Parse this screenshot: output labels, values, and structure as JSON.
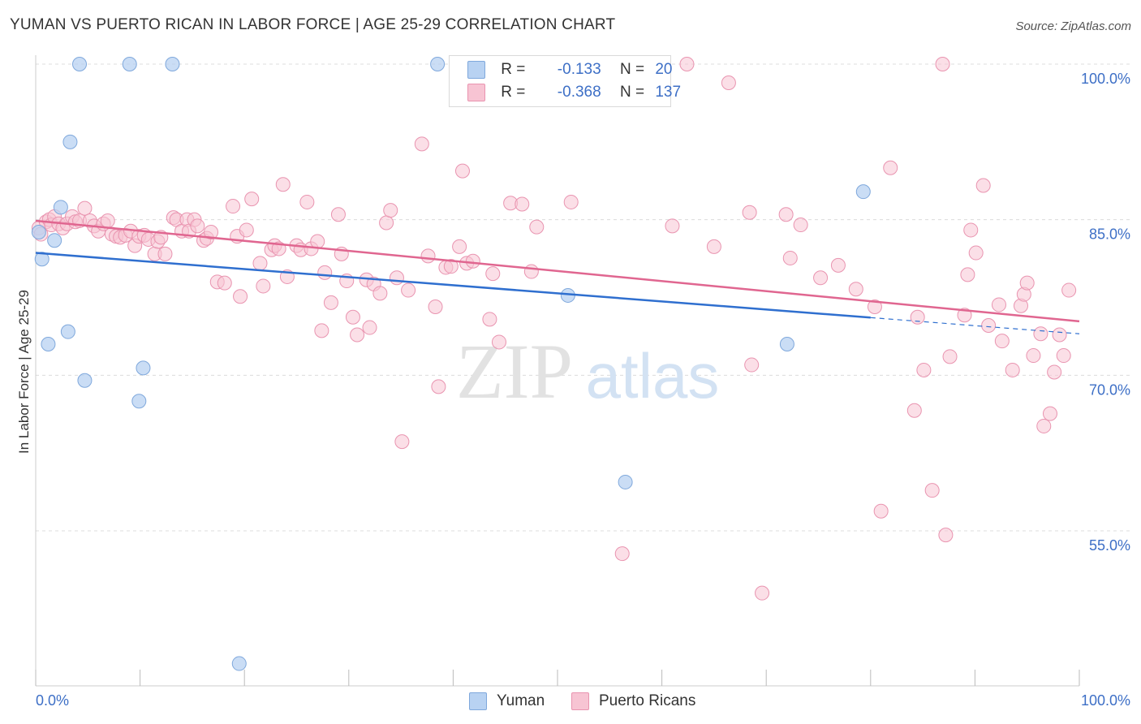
{
  "title": "YUMAN VS PUERTO RICAN IN LABOR FORCE | AGE 25-29 CORRELATION CHART",
  "source": "Source: ZipAtlas.com",
  "watermark": {
    "zip": "ZIP",
    "atlas": "atlas"
  },
  "legend": {
    "r_label": "R =",
    "n_label": "N =",
    "yuman": {
      "r": "-0.133",
      "n": "20"
    },
    "puerto": {
      "r": "-0.368",
      "n": "137"
    }
  },
  "bottom_legend": {
    "yuman": "Yuman",
    "puerto": "Puerto Ricans"
  },
  "colors": {
    "yuman_fill": "#b8d2f2",
    "yuman_stroke": "#7fa8dc",
    "yuman_line": "#2f6fcf",
    "puerto_fill": "#f7c4d3",
    "puerto_stroke": "#e994b0",
    "puerto_line": "#e06690",
    "axis_text": "#3d6fc6",
    "grid": "#dcdcdc"
  },
  "chart_data": {
    "type": "scatter",
    "title": "YUMAN VS PUERTO RICAN IN LABOR FORCE | AGE 25-29 CORRELATION CHART",
    "xlabel": "",
    "ylabel": "In Labor Force | Age 25-29",
    "xlim": [
      0,
      100
    ],
    "ylim": [
      40,
      101.5
    ],
    "x_tick_labels": [
      "0.0%",
      "100.0%"
    ],
    "y_ticks": [
      55,
      70,
      85,
      100
    ],
    "y_tick_labels": [
      "55.0%",
      "70.0%",
      "85.0%",
      "100.0%"
    ],
    "grid": true,
    "legend_position": "top-center",
    "series": [
      {
        "name": "Yuman",
        "r": -0.133,
        "n": 20,
        "trend": {
          "x0": 0,
          "y0": 81.8,
          "x1": 100,
          "y1": 74.0,
          "solid_until": 80
        },
        "points": [
          [
            0.3,
            83.8
          ],
          [
            0.6,
            81.2
          ],
          [
            1.2,
            73.0
          ],
          [
            1.8,
            83.0
          ],
          [
            2.4,
            86.2
          ],
          [
            3.1,
            74.2
          ],
          [
            3.3,
            92.5
          ],
          [
            4.2,
            100.0
          ],
          [
            4.7,
            69.5
          ],
          [
            9.0,
            100.0
          ],
          [
            9.9,
            67.5
          ],
          [
            10.3,
            70.7
          ],
          [
            13.1,
            100.0
          ],
          [
            19.5,
            42.2
          ],
          [
            38.5,
            100.0
          ],
          [
            51.2,
            100.0
          ],
          [
            51.0,
            77.7
          ],
          [
            56.5,
            59.7
          ],
          [
            72.0,
            73.0
          ],
          [
            79.3,
            87.7
          ]
        ]
      },
      {
        "name": "Puerto Ricans",
        "r": -0.368,
        "n": 137,
        "trend": {
          "x0": 0,
          "y0": 84.9,
          "x1": 100,
          "y1": 75.2
        },
        "points": [
          [
            0.3,
            84.2
          ],
          [
            0.5,
            83.6
          ],
          [
            1.0,
            84.8
          ],
          [
            1.3,
            85.0
          ],
          [
            1.5,
            84.5
          ],
          [
            1.8,
            85.3
          ],
          [
            2.2,
            84.6
          ],
          [
            2.6,
            84.2
          ],
          [
            3.0,
            84.6
          ],
          [
            3.5,
            85.3
          ],
          [
            3.8,
            84.8
          ],
          [
            4.2,
            84.9
          ],
          [
            4.7,
            86.1
          ],
          [
            5.2,
            84.9
          ],
          [
            5.6,
            84.4
          ],
          [
            6.0,
            83.9
          ],
          [
            6.5,
            84.6
          ],
          [
            6.9,
            84.9
          ],
          [
            7.3,
            83.6
          ],
          [
            7.7,
            83.4
          ],
          [
            8.1,
            83.3
          ],
          [
            8.6,
            83.5
          ],
          [
            9.1,
            83.9
          ],
          [
            9.5,
            82.5
          ],
          [
            9.9,
            83.4
          ],
          [
            10.4,
            83.5
          ],
          [
            10.8,
            83.1
          ],
          [
            11.4,
            81.7
          ],
          [
            11.7,
            82.9
          ],
          [
            12.0,
            83.3
          ],
          [
            12.4,
            81.7
          ],
          [
            13.2,
            85.2
          ],
          [
            13.5,
            85.0
          ],
          [
            14.0,
            83.9
          ],
          [
            14.5,
            85.0
          ],
          [
            14.7,
            83.9
          ],
          [
            15.2,
            85.0
          ],
          [
            15.5,
            84.4
          ],
          [
            16.1,
            83.0
          ],
          [
            16.4,
            83.2
          ],
          [
            16.8,
            83.8
          ],
          [
            17.4,
            79.0
          ],
          [
            18.1,
            78.9
          ],
          [
            18.9,
            86.3
          ],
          [
            19.3,
            83.4
          ],
          [
            19.6,
            77.6
          ],
          [
            20.2,
            84.0
          ],
          [
            20.7,
            87.0
          ],
          [
            21.5,
            80.8
          ],
          [
            21.8,
            78.6
          ],
          [
            22.6,
            82.1
          ],
          [
            22.9,
            82.5
          ],
          [
            23.3,
            82.2
          ],
          [
            23.7,
            88.4
          ],
          [
            24.1,
            79.5
          ],
          [
            25.0,
            82.5
          ],
          [
            25.4,
            82.1
          ],
          [
            26.0,
            86.7
          ],
          [
            26.4,
            82.2
          ],
          [
            27.0,
            82.9
          ],
          [
            27.4,
            74.3
          ],
          [
            27.7,
            79.9
          ],
          [
            28.3,
            77.0
          ],
          [
            29.0,
            85.5
          ],
          [
            29.3,
            81.7
          ],
          [
            29.8,
            79.1
          ],
          [
            30.4,
            75.6
          ],
          [
            30.8,
            73.9
          ],
          [
            31.7,
            79.2
          ],
          [
            32.0,
            74.6
          ],
          [
            32.4,
            78.8
          ],
          [
            33.0,
            77.9
          ],
          [
            33.6,
            84.7
          ],
          [
            34.0,
            85.9
          ],
          [
            34.6,
            79.4
          ],
          [
            35.1,
            63.6
          ],
          [
            35.7,
            78.2
          ],
          [
            37.0,
            92.3
          ],
          [
            37.6,
            81.5
          ],
          [
            38.3,
            76.6
          ],
          [
            38.6,
            68.9
          ],
          [
            39.3,
            80.4
          ],
          [
            39.8,
            80.5
          ],
          [
            40.6,
            82.4
          ],
          [
            40.9,
            89.7
          ],
          [
            41.3,
            80.8
          ],
          [
            41.9,
            81.0
          ],
          [
            43.5,
            75.4
          ],
          [
            43.8,
            79.8
          ],
          [
            44.4,
            73.2
          ],
          [
            45.5,
            86.6
          ],
          [
            46.6,
            86.5
          ],
          [
            47.5,
            80.0
          ],
          [
            48.0,
            84.3
          ],
          [
            50.0,
            100.0
          ],
          [
            51.9,
            100.0
          ],
          [
            51.3,
            86.7
          ],
          [
            55.2,
            100.0
          ],
          [
            56.2,
            52.8
          ],
          [
            61.0,
            84.4
          ],
          [
            62.4,
            100.0
          ],
          [
            65.0,
            82.4
          ],
          [
            66.4,
            98.2
          ],
          [
            68.4,
            85.7
          ],
          [
            68.6,
            71.0
          ],
          [
            69.6,
            49.0
          ],
          [
            71.9,
            85.5
          ],
          [
            72.3,
            81.3
          ],
          [
            73.3,
            84.5
          ],
          [
            75.2,
            79.4
          ],
          [
            76.9,
            80.6
          ],
          [
            78.6,
            78.3
          ],
          [
            80.4,
            76.6
          ],
          [
            81.0,
            56.9
          ],
          [
            81.9,
            90.0
          ],
          [
            84.2,
            66.6
          ],
          [
            84.5,
            75.6
          ],
          [
            85.1,
            70.5
          ],
          [
            85.9,
            58.9
          ],
          [
            86.9,
            100.0
          ],
          [
            87.2,
            54.6
          ],
          [
            87.6,
            71.8
          ],
          [
            89.0,
            75.8
          ],
          [
            89.3,
            79.7
          ],
          [
            89.6,
            84.0
          ],
          [
            90.1,
            81.8
          ],
          [
            90.8,
            88.3
          ],
          [
            91.3,
            74.8
          ],
          [
            92.3,
            76.8
          ],
          [
            92.6,
            73.3
          ],
          [
            93.6,
            70.5
          ],
          [
            94.4,
            76.7
          ],
          [
            94.7,
            77.8
          ],
          [
            95.0,
            78.9
          ],
          [
            95.6,
            71.9
          ],
          [
            96.3,
            74.0
          ],
          [
            96.6,
            65.1
          ],
          [
            97.2,
            66.3
          ],
          [
            97.6,
            70.3
          ],
          [
            98.1,
            73.9
          ],
          [
            98.5,
            71.9
          ],
          [
            99.0,
            78.2
          ]
        ]
      }
    ]
  }
}
